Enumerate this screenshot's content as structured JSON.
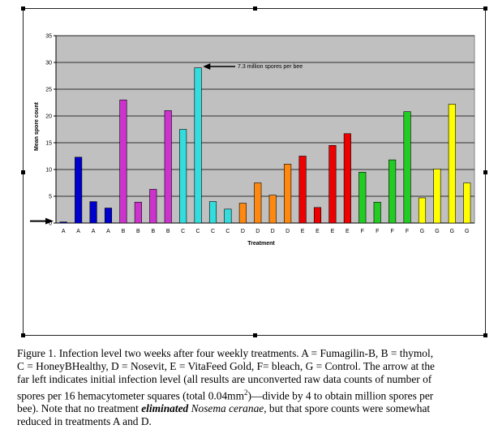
{
  "chart_data": {
    "type": "bar",
    "xlabel": "Treatment",
    "ylabel": "Mean spore count",
    "ylim": [
      0,
      35
    ],
    "yticks": [
      0,
      5,
      10,
      15,
      20,
      25,
      30,
      35
    ],
    "grid": true,
    "categories": [
      "A",
      "A",
      "A",
      "A",
      "B",
      "B",
      "B",
      "B",
      "C",
      "C",
      "C",
      "C",
      "D",
      "D",
      "D",
      "D",
      "E",
      "E",
      "E",
      "E",
      "F",
      "F",
      "F",
      "F",
      "G",
      "G",
      "G",
      "G"
    ],
    "values": [
      0.2,
      12.3,
      4.0,
      2.8,
      23.0,
      3.9,
      6.3,
      21.0,
      17.5,
      29.0,
      4.0,
      2.6,
      3.7,
      7.5,
      5.2,
      11.0,
      12.5,
      2.9,
      14.5,
      16.7,
      9.5,
      3.9,
      11.8,
      20.8,
      4.7,
      10.1,
      22.2,
      7.5
    ],
    "colors": [
      "#0000cc",
      "#0000cc",
      "#0000cc",
      "#0000cc",
      "#cc33cc",
      "#cc33cc",
      "#cc33cc",
      "#cc33cc",
      "#33dddd",
      "#33dddd",
      "#33dddd",
      "#33dddd",
      "#ff8811",
      "#ff8811",
      "#ff8811",
      "#ff8811",
      "#ee0000",
      "#ee0000",
      "#ee0000",
      "#ee0000",
      "#22cc22",
      "#22cc22",
      "#22cc22",
      "#22cc22",
      "#ffff00",
      "#ffff00",
      "#ffff00",
      "#ffff00"
    ],
    "plot_background": "#c0c0c0",
    "annotation": {
      "text": "7.3 million spores per bee",
      "target_index": 9
    },
    "initial_level_arrow": true
  },
  "caption": {
    "line1": "Figure 1.  Infection level two weeks after four weekly treatments.  A = Fumagilin-B, B = thymol,",
    "line2": "C = HoneyBHealthy, D = Nosevit, E = VitaFeed Gold, F= bleach, G = Control.  The arrow at the",
    "line3": "far left indicates initial infection level (all results are unconverted raw data counts of number of",
    "line4a": "spores per 16 hemacytometer squares (total 0.04mm",
    "line4sup": "2",
    "line4b": ")—divide by 4 to obtain million spores per",
    "line5a": "bee).  Note that no treatment ",
    "line5em": "eliminated",
    "line5b": " ",
    "line5sp": "Nosema ceranae",
    "line5c": ", but that spore counts were somewhat",
    "line6": "reduced in treatments A and D."
  }
}
